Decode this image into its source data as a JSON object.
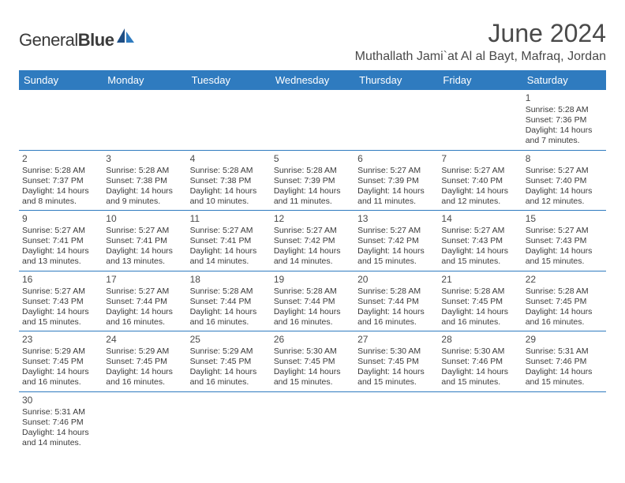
{
  "logo": {
    "text_general": "General",
    "text_blue": "Blue"
  },
  "title": "June 2024",
  "location": "Muthallath Jami`at Al al Bayt, Mafraq, Jordan",
  "colors": {
    "header_bg": "#2f7bbf",
    "header_text": "#ffffff",
    "divider": "#2f7bbf",
    "body_text": "#3a3a3a",
    "page_bg": "#ffffff"
  },
  "weekdays": [
    "Sunday",
    "Monday",
    "Tuesday",
    "Wednesday",
    "Thursday",
    "Friday",
    "Saturday"
  ],
  "grid": [
    [
      null,
      null,
      null,
      null,
      null,
      null,
      {
        "n": "1",
        "sr": "5:28 AM",
        "ss": "7:36 PM",
        "dl": "14 hours and 7 minutes."
      }
    ],
    [
      {
        "n": "2",
        "sr": "5:28 AM",
        "ss": "7:37 PM",
        "dl": "14 hours and 8 minutes."
      },
      {
        "n": "3",
        "sr": "5:28 AM",
        "ss": "7:38 PM",
        "dl": "14 hours and 9 minutes."
      },
      {
        "n": "4",
        "sr": "5:28 AM",
        "ss": "7:38 PM",
        "dl": "14 hours and 10 minutes."
      },
      {
        "n": "5",
        "sr": "5:28 AM",
        "ss": "7:39 PM",
        "dl": "14 hours and 11 minutes."
      },
      {
        "n": "6",
        "sr": "5:27 AM",
        "ss": "7:39 PM",
        "dl": "14 hours and 11 minutes."
      },
      {
        "n": "7",
        "sr": "5:27 AM",
        "ss": "7:40 PM",
        "dl": "14 hours and 12 minutes."
      },
      {
        "n": "8",
        "sr": "5:27 AM",
        "ss": "7:40 PM",
        "dl": "14 hours and 12 minutes."
      }
    ],
    [
      {
        "n": "9",
        "sr": "5:27 AM",
        "ss": "7:41 PM",
        "dl": "14 hours and 13 minutes."
      },
      {
        "n": "10",
        "sr": "5:27 AM",
        "ss": "7:41 PM",
        "dl": "14 hours and 13 minutes."
      },
      {
        "n": "11",
        "sr": "5:27 AM",
        "ss": "7:41 PM",
        "dl": "14 hours and 14 minutes."
      },
      {
        "n": "12",
        "sr": "5:27 AM",
        "ss": "7:42 PM",
        "dl": "14 hours and 14 minutes."
      },
      {
        "n": "13",
        "sr": "5:27 AM",
        "ss": "7:42 PM",
        "dl": "14 hours and 15 minutes."
      },
      {
        "n": "14",
        "sr": "5:27 AM",
        "ss": "7:43 PM",
        "dl": "14 hours and 15 minutes."
      },
      {
        "n": "15",
        "sr": "5:27 AM",
        "ss": "7:43 PM",
        "dl": "14 hours and 15 minutes."
      }
    ],
    [
      {
        "n": "16",
        "sr": "5:27 AM",
        "ss": "7:43 PM",
        "dl": "14 hours and 15 minutes."
      },
      {
        "n": "17",
        "sr": "5:27 AM",
        "ss": "7:44 PM",
        "dl": "14 hours and 16 minutes."
      },
      {
        "n": "18",
        "sr": "5:28 AM",
        "ss": "7:44 PM",
        "dl": "14 hours and 16 minutes."
      },
      {
        "n": "19",
        "sr": "5:28 AM",
        "ss": "7:44 PM",
        "dl": "14 hours and 16 minutes."
      },
      {
        "n": "20",
        "sr": "5:28 AM",
        "ss": "7:44 PM",
        "dl": "14 hours and 16 minutes."
      },
      {
        "n": "21",
        "sr": "5:28 AM",
        "ss": "7:45 PM",
        "dl": "14 hours and 16 minutes."
      },
      {
        "n": "22",
        "sr": "5:28 AM",
        "ss": "7:45 PM",
        "dl": "14 hours and 16 minutes."
      }
    ],
    [
      {
        "n": "23",
        "sr": "5:29 AM",
        "ss": "7:45 PM",
        "dl": "14 hours and 16 minutes."
      },
      {
        "n": "24",
        "sr": "5:29 AM",
        "ss": "7:45 PM",
        "dl": "14 hours and 16 minutes."
      },
      {
        "n": "25",
        "sr": "5:29 AM",
        "ss": "7:45 PM",
        "dl": "14 hours and 16 minutes."
      },
      {
        "n": "26",
        "sr": "5:30 AM",
        "ss": "7:45 PM",
        "dl": "14 hours and 15 minutes."
      },
      {
        "n": "27",
        "sr": "5:30 AM",
        "ss": "7:45 PM",
        "dl": "14 hours and 15 minutes."
      },
      {
        "n": "28",
        "sr": "5:30 AM",
        "ss": "7:46 PM",
        "dl": "14 hours and 15 minutes."
      },
      {
        "n": "29",
        "sr": "5:31 AM",
        "ss": "7:46 PM",
        "dl": "14 hours and 15 minutes."
      }
    ],
    [
      {
        "n": "30",
        "sr": "5:31 AM",
        "ss": "7:46 PM",
        "dl": "14 hours and 14 minutes."
      },
      null,
      null,
      null,
      null,
      null,
      null
    ]
  ],
  "labels": {
    "sunrise": "Sunrise: ",
    "sunset": "Sunset: ",
    "daylight": "Daylight: "
  }
}
